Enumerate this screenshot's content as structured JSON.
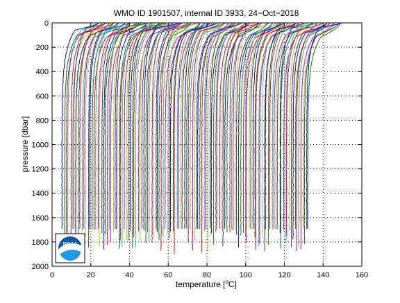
{
  "chart_data": {
    "type": "line",
    "title": "WMO ID 1901507, internal ID 3933, 24−Oct−2018",
    "xlabel": "temperature [°C]",
    "xlabel_parts": {
      "before": "temperature [",
      "degree": "o",
      "after": "C]"
    },
    "ylabel": "pressure [dbar]",
    "xlim": [
      0,
      160
    ],
    "ylim": [
      0,
      2000
    ],
    "y_reversed": true,
    "grid": true,
    "grid_style": "dotted",
    "x_ticks": [
      0,
      20,
      40,
      60,
      80,
      100,
      120,
      140,
      160
    ],
    "y_ticks": [
      0,
      200,
      400,
      600,
      800,
      1000,
      1200,
      1400,
      1600,
      1800,
      2000
    ],
    "series_summary": {
      "count": 128,
      "profile_offset_degC": 1,
      "surface_temperature_first_degC": 22.5,
      "deep_temperature_first_degC": 5.5,
      "thermocline_depth_dbar": [
        30,
        120
      ],
      "max_pressure_dbar": [
        1690,
        1900
      ]
    },
    "colors": [
      "#0000ff",
      "#008000",
      "#ff0000",
      "#00bfbf",
      "#bf00bf",
      "#bfbf00",
      "#404040"
    ],
    "logo": {
      "name": "noaa-logo",
      "text": "NOAA"
    }
  }
}
